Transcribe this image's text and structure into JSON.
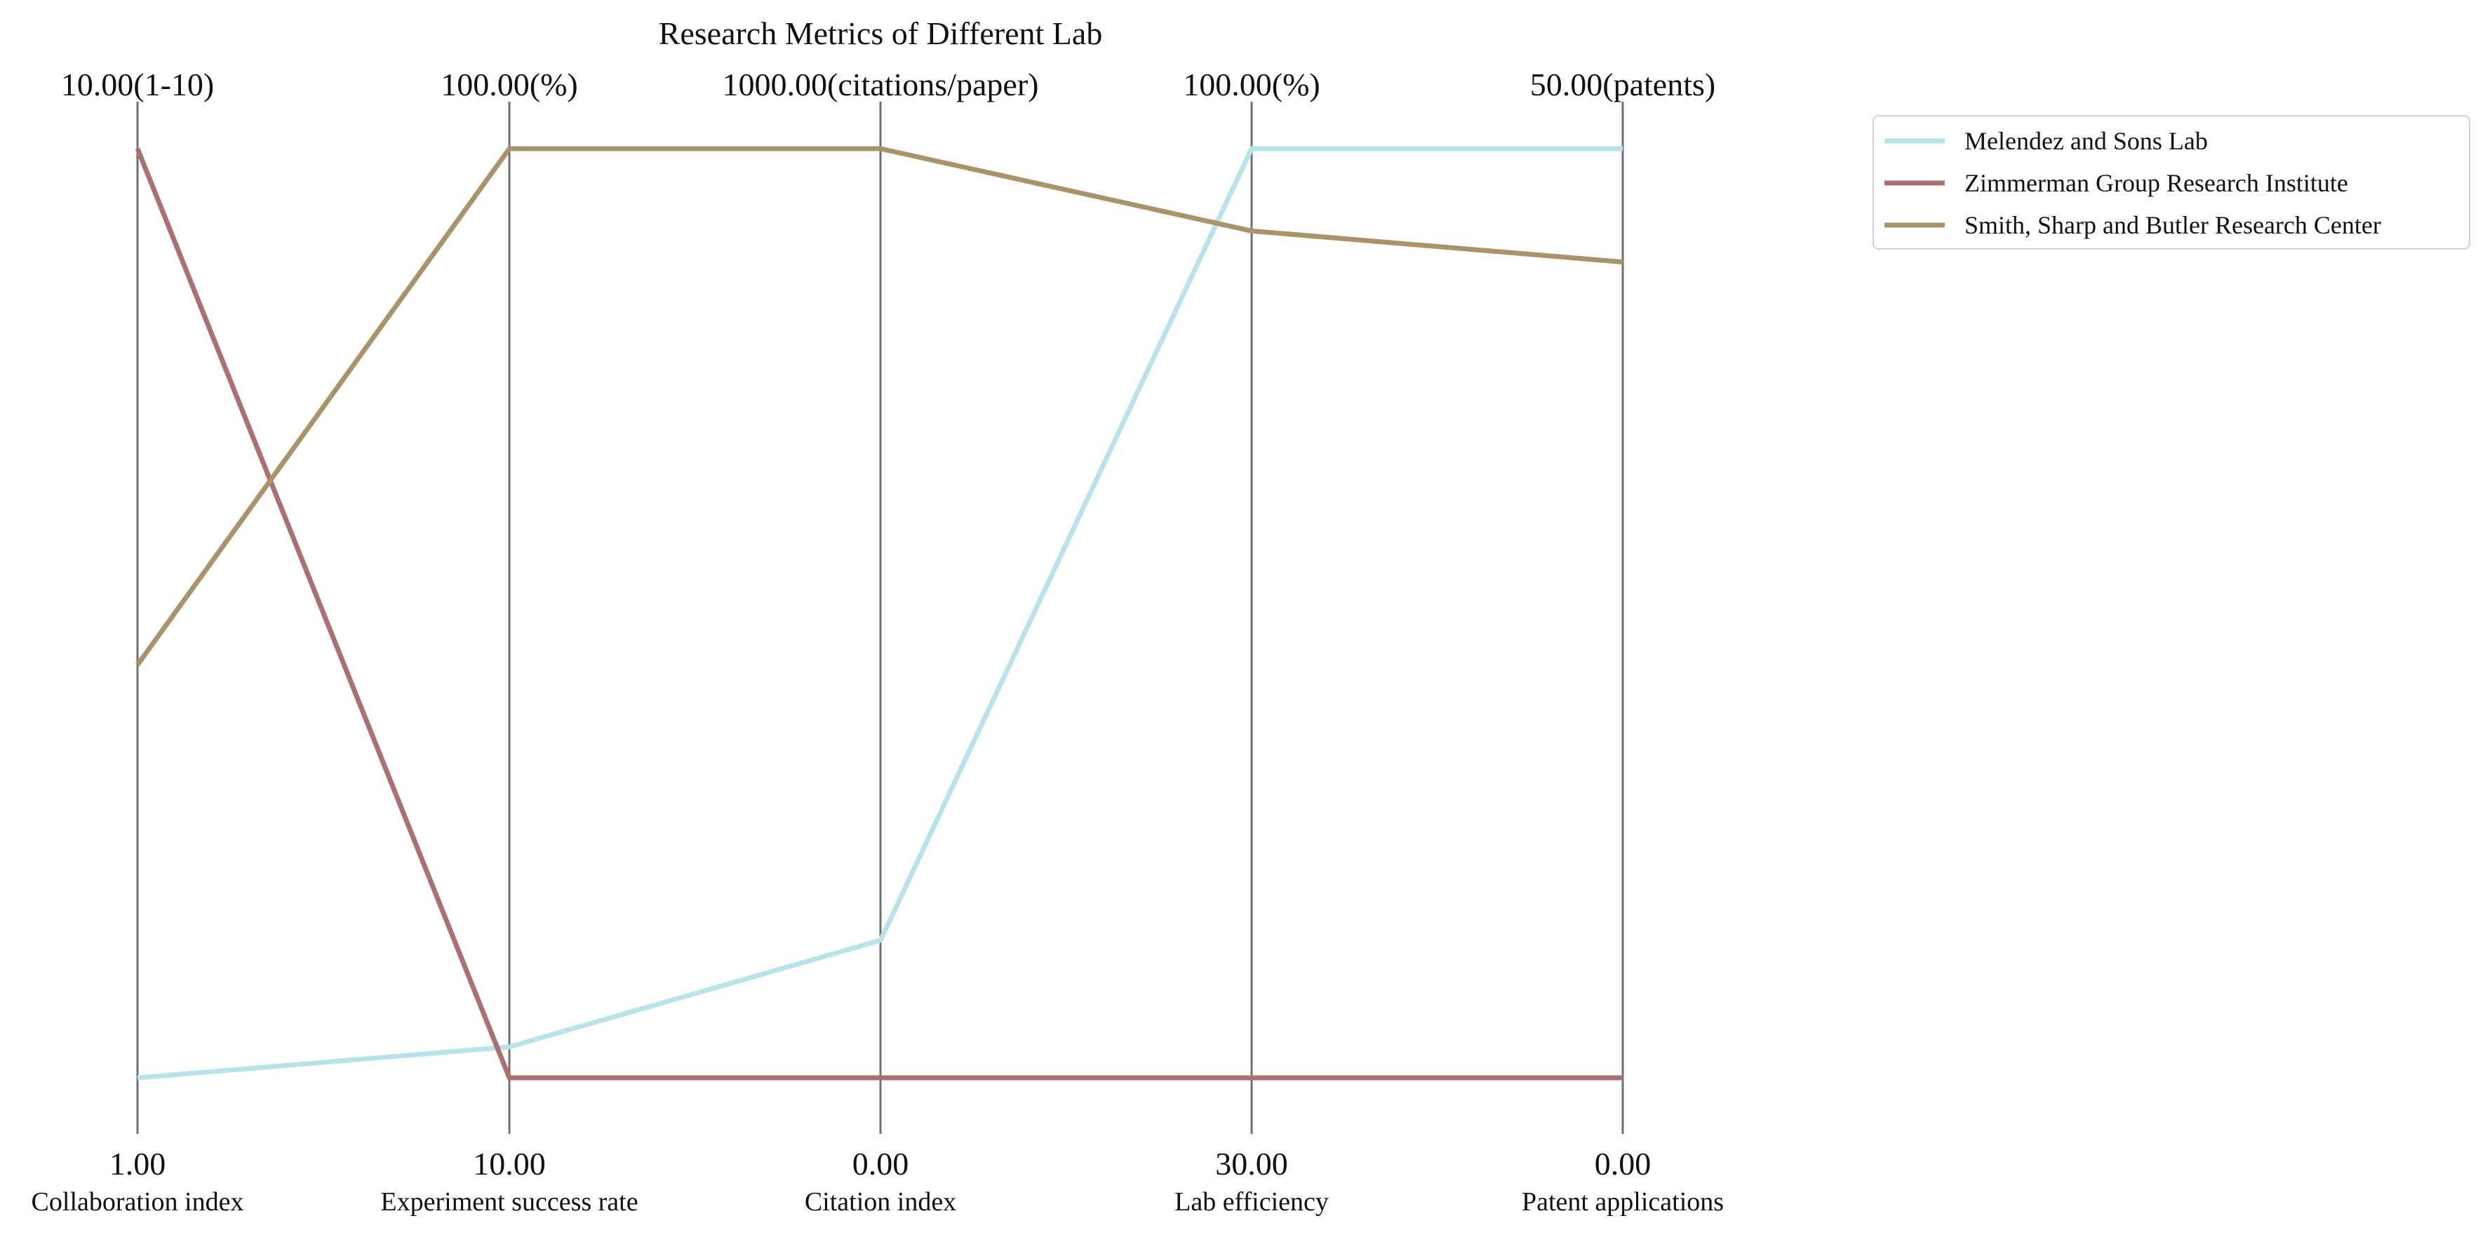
{
  "chart_data": {
    "type": "parallel_coordinates",
    "title": "Research Metrics of Different Lab",
    "axes": [
      {
        "name": "Collaboration index",
        "min": 1,
        "max": 10,
        "min_label": "1.00",
        "max_label": "10.00(1-10)"
      },
      {
        "name": "Experiment success rate",
        "min": 10,
        "max": 100,
        "min_label": "10.00",
        "max_label": "100.00(%)"
      },
      {
        "name": "Citation index",
        "min": 0,
        "max": 1000,
        "min_label": "0.00",
        "max_label": "1000.00(citations/paper)"
      },
      {
        "name": "Lab efficiency",
        "min": 30,
        "max": 100,
        "min_label": "30.00",
        "max_label": "100.00(%)"
      },
      {
        "name": "Patent applications",
        "min": 0,
        "max": 50,
        "min_label": "0.00",
        "max_label": "50.00(patents)"
      }
    ],
    "series": [
      {
        "name": "Melendez and Sons  Lab",
        "color": "#b9e3ea",
        "values": [
          1.0,
          13.0,
          148,
          100,
          50
        ]
      },
      {
        "name": "Zimmerman Group  Research Institute",
        "color": "#a87070",
        "values": [
          10.0,
          10.0,
          0,
          30,
          0
        ]
      },
      {
        "name": "Smith, Sharp and Butler  Research Center",
        "color": "#a9946a",
        "values": [
          5.0,
          100.0,
          1000,
          93.8,
          43.9
        ]
      }
    ],
    "legend_position": "top-right",
    "grid": false
  }
}
